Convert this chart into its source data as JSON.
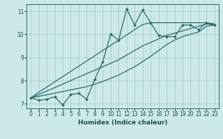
{
  "xlabel": "Humidex (Indice chaleur)",
  "bg_color": "#cce8e8",
  "line_color": "#2a6b6b",
  "grid_color": "#aacccc",
  "x_data": [
    0,
    1,
    2,
    3,
    4,
    5,
    6,
    7,
    8,
    9,
    10,
    11,
    12,
    13,
    14,
    15,
    16,
    17,
    18,
    19,
    20,
    21,
    22,
    23
  ],
  "y_zigzag": [
    7.25,
    7.15,
    7.2,
    7.3,
    6.95,
    7.4,
    7.45,
    7.2,
    8.05,
    8.8,
    10.0,
    9.75,
    11.1,
    10.4,
    11.05,
    10.5,
    9.95,
    9.9,
    9.9,
    10.4,
    10.4,
    10.2,
    10.5,
    10.4
  ],
  "y_trend_upper": [
    7.25,
    7.5,
    7.72,
    7.95,
    8.17,
    8.4,
    8.62,
    8.85,
    9.07,
    9.3,
    9.52,
    9.75,
    9.97,
    10.2,
    10.42,
    10.5,
    10.5,
    10.5,
    10.5,
    10.5,
    10.5,
    10.5,
    10.5,
    10.45
  ],
  "y_trend_mid": [
    7.25,
    7.4,
    7.55,
    7.7,
    7.85,
    8.0,
    8.15,
    8.3,
    8.45,
    8.6,
    8.75,
    8.9,
    9.1,
    9.3,
    9.5,
    9.65,
    9.8,
    9.95,
    10.05,
    10.15,
    10.25,
    10.35,
    10.45,
    10.4
  ],
  "y_trend_lower": [
    7.25,
    7.32,
    7.39,
    7.46,
    7.53,
    7.6,
    7.67,
    7.74,
    7.85,
    7.96,
    8.1,
    8.24,
    8.42,
    8.6,
    8.82,
    9.05,
    9.3,
    9.55,
    9.75,
    9.9,
    10.0,
    10.1,
    10.35,
    10.4
  ],
  "ylim": [
    6.8,
    11.3
  ],
  "xlim": [
    -0.5,
    23.5
  ],
  "yticks": [
    7,
    8,
    9,
    10,
    11
  ],
  "xticks": [
    0,
    1,
    2,
    3,
    4,
    5,
    6,
    7,
    8,
    9,
    10,
    11,
    12,
    13,
    14,
    15,
    16,
    17,
    18,
    19,
    20,
    21,
    22,
    23
  ]
}
